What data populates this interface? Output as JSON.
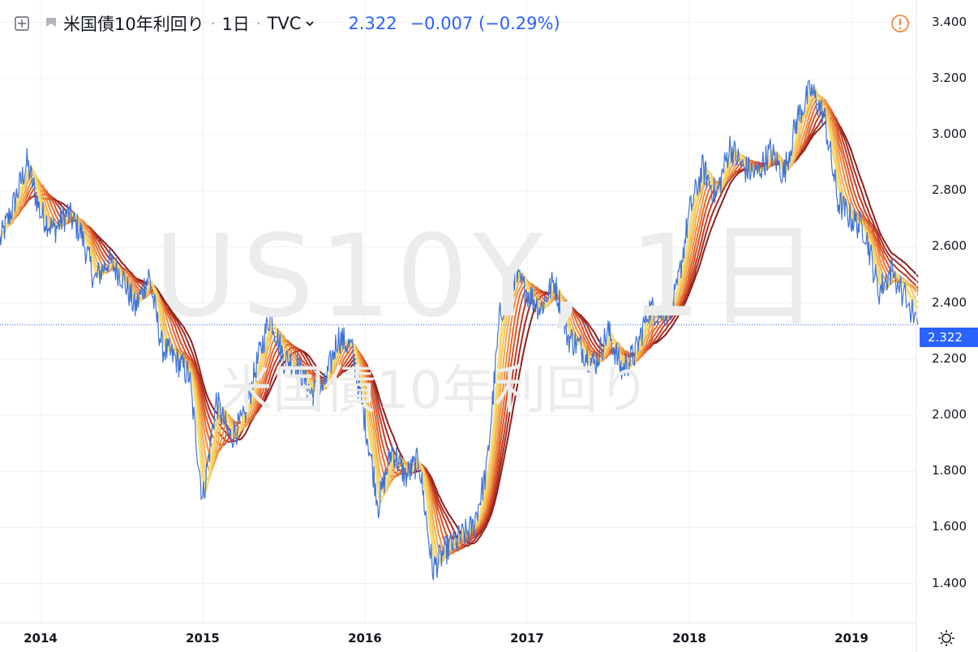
{
  "header": {
    "title": "米国債10年利回り",
    "interval": "1日",
    "source": "TVC",
    "price": "2.322",
    "change": "−0.007 (−0.29%)",
    "separator": "·"
  },
  "watermark": {
    "line1": "US10Y, 1日",
    "line2": "米国債10年利回り"
  },
  "price_label": "2.322",
  "colors": {
    "price_line": "#3f73d6",
    "ribbon_light": "#f5e07a",
    "ribbon_dark": "#8a1f1f",
    "alert": "#f0883e",
    "accent": "#2962ff"
  },
  "icons": [
    "add-panel-icon",
    "flag-icon",
    "chevron-down-icon",
    "alert-icon",
    "settings-icon"
  ],
  "chart_data": {
    "type": "line",
    "title": "米国債10年利回り",
    "x_ticks": [
      "2014",
      "2015",
      "2016",
      "2017",
      "2018",
      "2019"
    ],
    "y_ticks": [
      "3.400",
      "3.200",
      "3.000",
      "2.800",
      "2.600",
      "2.400",
      "2.200",
      "2.000",
      "1.800",
      "1.600",
      "1.400"
    ],
    "ylim": [
      1.26,
      3.48
    ],
    "grid": true,
    "last_value": 2.322,
    "series": [
      {
        "style": "price",
        "points": [
          [
            "2013-10",
            2.62
          ],
          [
            "2013-11",
            2.75
          ],
          [
            "2013-12",
            2.9
          ],
          [
            "2014-01",
            2.72
          ],
          [
            "2014-02",
            2.66
          ],
          [
            "2014-03",
            2.72
          ],
          [
            "2014-04",
            2.65
          ],
          [
            "2014-05",
            2.48
          ],
          [
            "2014-06",
            2.55
          ],
          [
            "2014-07",
            2.5
          ],
          [
            "2014-08",
            2.38
          ],
          [
            "2014-09",
            2.5
          ],
          [
            "2014-10",
            2.24
          ],
          [
            "2014-11",
            2.2
          ],
          [
            "2014-12",
            2.14
          ],
          [
            "2015-01",
            1.7
          ],
          [
            "2015-02",
            2.05
          ],
          [
            "2015-03",
            1.92
          ],
          [
            "2015-04",
            1.98
          ],
          [
            "2015-05",
            2.18
          ],
          [
            "2015-06",
            2.36
          ],
          [
            "2015-07",
            2.2
          ],
          [
            "2015-08",
            2.18
          ],
          [
            "2015-09",
            2.08
          ],
          [
            "2015-10",
            2.1
          ],
          [
            "2015-11",
            2.28
          ],
          [
            "2015-12",
            2.24
          ],
          [
            "2016-01",
            1.98
          ],
          [
            "2016-02",
            1.68
          ],
          [
            "2016-03",
            1.88
          ],
          [
            "2016-04",
            1.78
          ],
          [
            "2016-05",
            1.84
          ],
          [
            "2016-06",
            1.45
          ],
          [
            "2016-07",
            1.52
          ],
          [
            "2016-08",
            1.56
          ],
          [
            "2016-09",
            1.6
          ],
          [
            "2016-10",
            1.8
          ],
          [
            "2016-11",
            2.36
          ],
          [
            "2016-12",
            2.5
          ],
          [
            "2017-01",
            2.44
          ],
          [
            "2017-02",
            2.38
          ],
          [
            "2017-03",
            2.48
          ],
          [
            "2017-04",
            2.28
          ],
          [
            "2017-05",
            2.24
          ],
          [
            "2017-06",
            2.18
          ],
          [
            "2017-07",
            2.3
          ],
          [
            "2017-08",
            2.16
          ],
          [
            "2017-09",
            2.22
          ],
          [
            "2017-10",
            2.38
          ],
          [
            "2017-11",
            2.36
          ],
          [
            "2017-12",
            2.42
          ],
          [
            "2018-01",
            2.72
          ],
          [
            "2018-02",
            2.88
          ],
          [
            "2018-03",
            2.78
          ],
          [
            "2018-04",
            2.96
          ],
          [
            "2018-05",
            2.88
          ],
          [
            "2018-06",
            2.86
          ],
          [
            "2018-07",
            2.94
          ],
          [
            "2018-08",
            2.86
          ],
          [
            "2018-09",
            3.06
          ],
          [
            "2018-10",
            3.16
          ],
          [
            "2018-11",
            3.06
          ],
          [
            "2018-12",
            2.76
          ],
          [
            "2019-01",
            2.7
          ],
          [
            "2019-02",
            2.66
          ],
          [
            "2019-03",
            2.44
          ],
          [
            "2019-04",
            2.52
          ],
          [
            "2019-05",
            2.322
          ]
        ]
      }
    ]
  }
}
